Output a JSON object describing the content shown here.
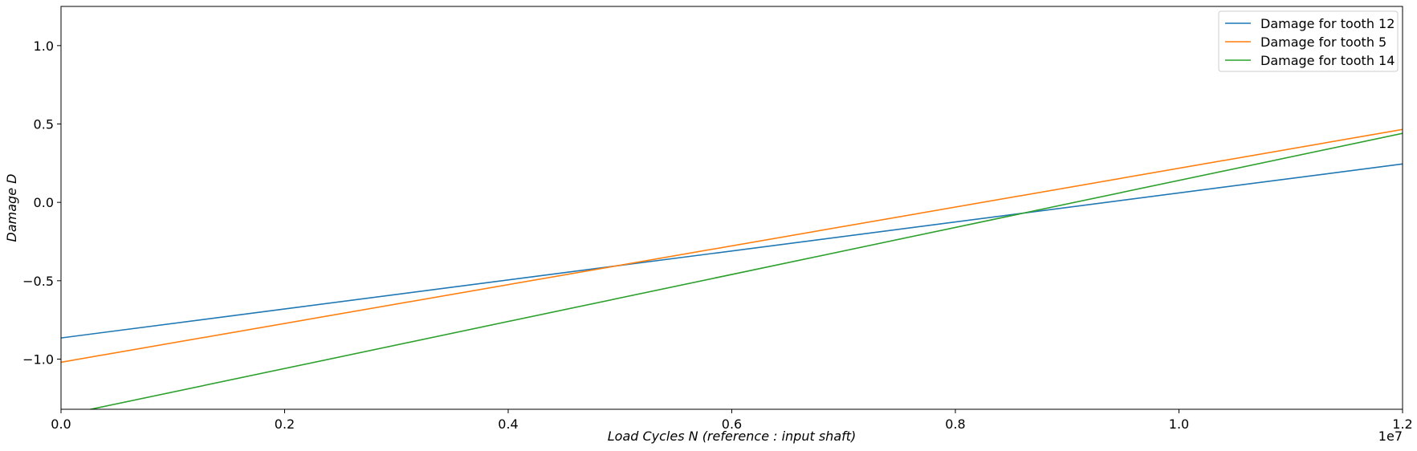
{
  "chart_data": {
    "type": "line",
    "title": "",
    "xlabel": "Load Cycles N (reference :  input shaft)",
    "ylabel": "Damage D",
    "x_offset_label": "1e7",
    "xlim": [
      0,
      1.2
    ],
    "ylim": [
      -1.32,
      1.25
    ],
    "x_ticks": [
      0.0,
      0.2,
      0.4,
      0.6,
      0.8,
      1.0,
      1.2
    ],
    "x_tick_labels": [
      "0.0",
      "0.2",
      "0.4",
      "0.6",
      "0.8",
      "1.0",
      "1.2"
    ],
    "y_ticks": [
      1.0,
      0.5,
      0.0,
      -0.5,
      -1.0
    ],
    "y_tick_labels": [
      "1.0",
      "0.5",
      "0.0",
      "−0.5",
      "−1.0"
    ],
    "grid": false,
    "legend_position": "top-right",
    "series": [
      {
        "name": "Damage for tooth 12",
        "color": "#1f77b4",
        "x": [
          0,
          1.2
        ],
        "y": [
          -0.865,
          0.245
        ]
      },
      {
        "name": "Damage for tooth 5",
        "color": "#ff7f0e",
        "x": [
          0,
          1.2
        ],
        "y": [
          -1.02,
          0.465
        ]
      },
      {
        "name": "Damage for tooth 14",
        "color": "#2ca02c",
        "x": [
          0,
          1.2
        ],
        "y": [
          -1.36,
          0.44
        ]
      }
    ]
  }
}
